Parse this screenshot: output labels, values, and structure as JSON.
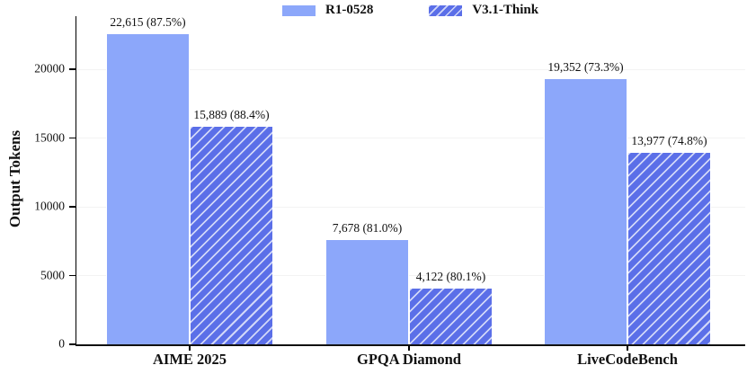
{
  "chart_data": {
    "type": "bar",
    "title": "",
    "xlabel": "",
    "ylabel": "Output Tokens",
    "categories": [
      "AIME 2025",
      "GPQA Diamond",
      "LiveCodeBench"
    ],
    "series": [
      {
        "name": "R1-0528",
        "pattern": "solid",
        "color": "#8CA7FA",
        "values": [
          22615,
          7678,
          19352
        ],
        "labels": [
          "22,615 (87.5%)",
          "7,678 (81.0%)",
          "19,352 (73.3%)"
        ]
      },
      {
        "name": "V3.1-Think",
        "pattern": "hatch",
        "color": "#5B6FE8",
        "hatch_color": "#ffffff",
        "values": [
          15889,
          4122,
          13977
        ],
        "labels": [
          "15,889 (88.4%)",
          "4,122 (80.1%)",
          "13,977 (74.8%)"
        ]
      }
    ],
    "yticks": [
      0,
      5000,
      10000,
      15000,
      20000
    ],
    "ytick_labels": [
      "0",
      "5000",
      "10000",
      "15000",
      "20000"
    ],
    "ylim": [
      0,
      23860
    ],
    "grid": true,
    "legend_position": "top-center"
  }
}
